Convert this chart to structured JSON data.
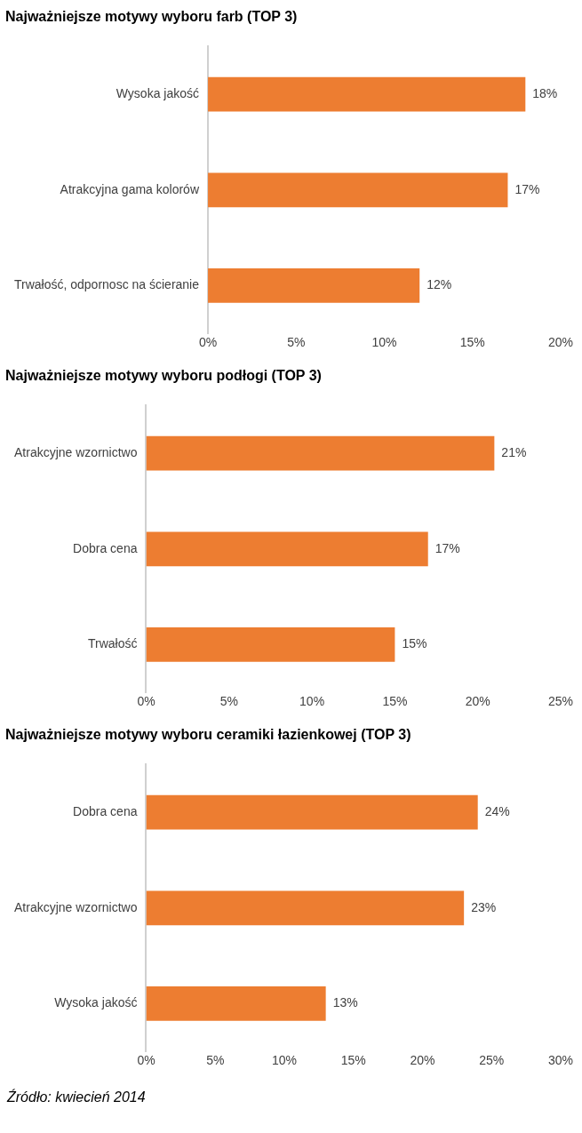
{
  "chart_data": [
    {
      "type": "bar",
      "orientation": "horizontal",
      "title": "Najważniejsze motywy wyboru farb (TOP 3)",
      "categories": [
        "Wysoka jakość",
        "Atrakcyjna gama kolorów",
        "Trwałość, odpornosc na ścieranie"
      ],
      "values": [
        18,
        17,
        12
      ],
      "color": "#ed7d31",
      "value_labels": [
        "18%",
        "17%",
        "12%"
      ],
      "xlim": [
        0,
        20
      ],
      "xticks": [
        {
          "value": 0,
          "label": "0%"
        },
        {
          "value": 5,
          "label": "5%"
        },
        {
          "value": 10,
          "label": "10%"
        },
        {
          "value": 15,
          "label": "15%"
        },
        {
          "value": 20,
          "label": "20%"
        }
      ],
      "grid": false,
      "legend": false
    },
    {
      "type": "bar",
      "orientation": "horizontal",
      "title": "Najważniejsze motywy wyboru podłogi (TOP 3)",
      "categories": [
        "Atrakcyjne wzornictwo",
        "Dobra cena",
        "Trwałość"
      ],
      "values": [
        21,
        17,
        15
      ],
      "color": "#ed7d31",
      "value_labels": [
        "21%",
        "17%",
        "15%"
      ],
      "xlim": [
        0,
        25
      ],
      "xticks": [
        {
          "value": 0,
          "label": "0%"
        },
        {
          "value": 5,
          "label": "5%"
        },
        {
          "value": 10,
          "label": "10%"
        },
        {
          "value": 15,
          "label": "15%"
        },
        {
          "value": 20,
          "label": "20%"
        },
        {
          "value": 25,
          "label": "25%"
        }
      ],
      "grid": false,
      "legend": false
    },
    {
      "type": "bar",
      "orientation": "horizontal",
      "title": "Najważniejsze motywy wyboru ceramiki łazienkowej (TOP 3)",
      "categories": [
        "Dobra cena",
        "Atrakcyjne wzornictwo",
        "Wysoka jakość"
      ],
      "values": [
        24,
        23,
        13
      ],
      "color": "#ed7d31",
      "value_labels": [
        "24%",
        "23%",
        "13%"
      ],
      "xlim": [
        0,
        30
      ],
      "xticks": [
        {
          "value": 0,
          "label": "0%"
        },
        {
          "value": 5,
          "label": "5%"
        },
        {
          "value": 10,
          "label": "10%"
        },
        {
          "value": 15,
          "label": "15%"
        },
        {
          "value": 20,
          "label": "20%"
        },
        {
          "value": 25,
          "label": "25%"
        },
        {
          "value": 30,
          "label": "30%"
        }
      ],
      "grid": false,
      "legend": false,
      "annotations": [
        "Źródło: kwiecień 2014"
      ]
    }
  ]
}
